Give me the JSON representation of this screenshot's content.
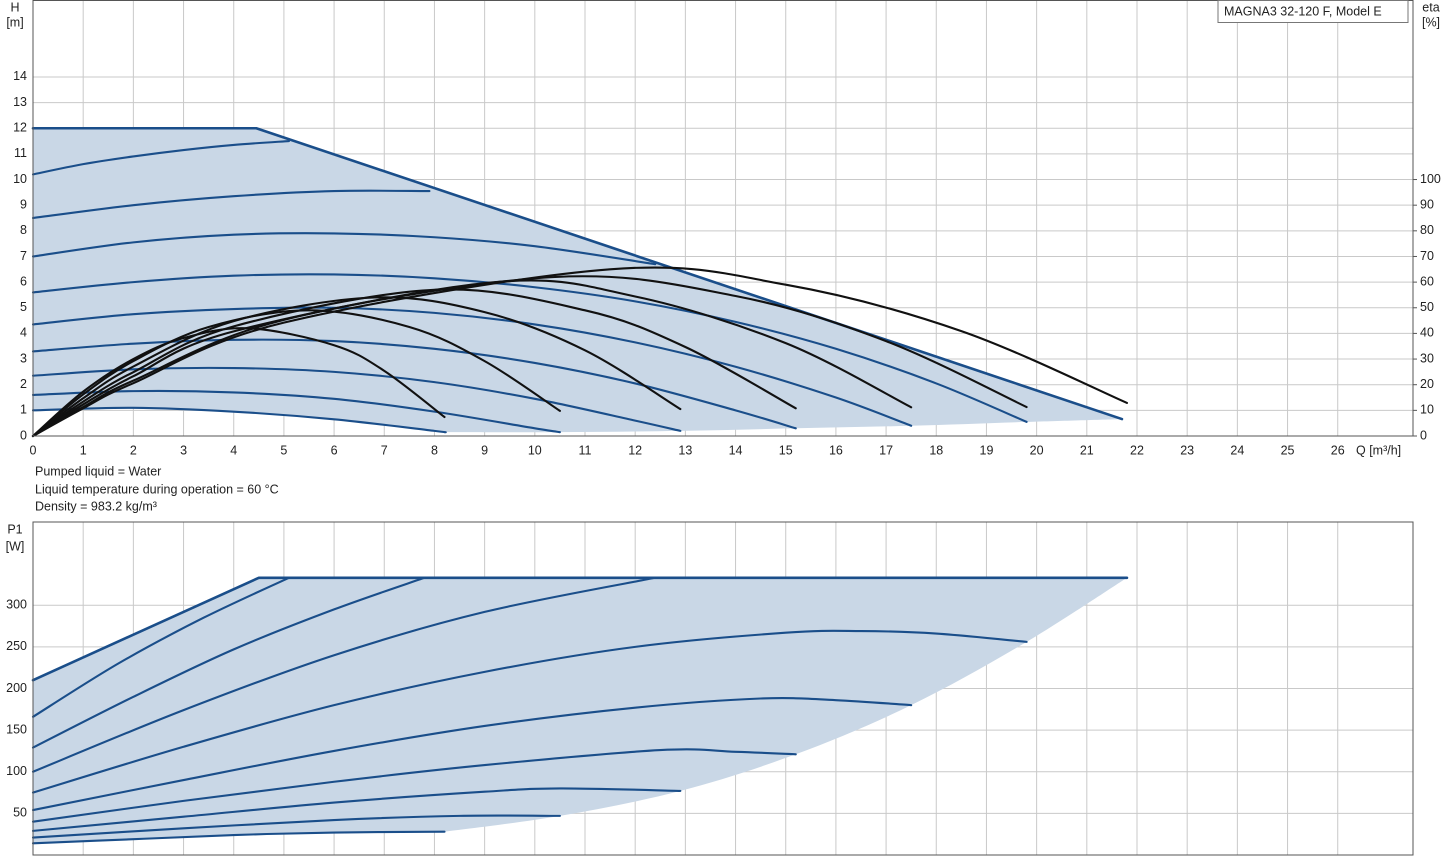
{
  "chart_data": [
    {
      "type": "line",
      "title": "MAGNA3 32-120 F, Model E",
      "ylabel": "H",
      "yunit": "[m]",
      "y2label": "eta",
      "y2unit": "[%]",
      "xlabel": "Q [m³/h]",
      "notes": [
        "Pumped liquid = Water",
        "Liquid temperature during operation = 60 °C",
        "Density = 983.2 kg/m³"
      ],
      "xlim": [
        0,
        27.5
      ],
      "xticks": [
        0,
        1,
        2,
        3,
        4,
        5,
        6,
        7,
        8,
        9,
        10,
        11,
        12,
        13,
        14,
        15,
        16,
        17,
        18,
        19,
        20,
        21,
        22,
        23,
        24,
        25,
        26
      ],
      "ylim": [
        0,
        17
      ],
      "yticks": [
        0,
        1,
        2,
        3,
        4,
        5,
        6,
        7,
        8,
        9,
        10,
        11,
        12,
        13,
        14
      ],
      "y2lim": [
        0,
        170
      ],
      "y2ticks": [
        0,
        10,
        20,
        30,
        40,
        50,
        60,
        70,
        80,
        90,
        100
      ],
      "grid": true,
      "area_color": "#c9d7e6",
      "series": [
        {
          "color": "#1a4e8a",
          "interpolation": "linear",
          "x": [
            0,
            4.45,
            21.7
          ],
          "values": [
            12,
            12,
            0.66
          ]
        },
        {
          "color": "#1a4e8a",
          "x": [
            0,
            1,
            2,
            3,
            4,
            5.1
          ],
          "values": [
            10.2,
            10.6,
            10.9,
            11.15,
            11.35,
            11.5
          ]
        },
        {
          "color": "#1a4e8a",
          "x": [
            0,
            2,
            4,
            6,
            7.9
          ],
          "values": [
            8.5,
            9.0,
            9.35,
            9.55,
            9.55
          ]
        },
        {
          "color": "#1a4e8a",
          "x": [
            0,
            2,
            4,
            6,
            8,
            10,
            12.4
          ],
          "values": [
            7.0,
            7.55,
            7.85,
            7.9,
            7.75,
            7.4,
            6.7
          ]
        },
        {
          "color": "#1a4e8a",
          "x": [
            0,
            2,
            4,
            6,
            8,
            10,
            12,
            14,
            16,
            18,
            19.8
          ],
          "values": [
            5.6,
            6.0,
            6.25,
            6.3,
            6.15,
            5.8,
            5.25,
            4.45,
            3.4,
            2.05,
            0.55
          ]
        },
        {
          "color": "#1a4e8a",
          "x": [
            0,
            2,
            4,
            6,
            8,
            10,
            12,
            14,
            16,
            17.5
          ],
          "values": [
            4.35,
            4.75,
            4.95,
            5.0,
            4.8,
            4.35,
            3.65,
            2.7,
            1.5,
            0.4
          ]
        },
        {
          "color": "#1a4e8a",
          "x": [
            0,
            2,
            4,
            6,
            8,
            10,
            12,
            14,
            15.2
          ],
          "values": [
            3.3,
            3.6,
            3.75,
            3.7,
            3.4,
            2.85,
            2.05,
            1.0,
            0.3
          ]
        },
        {
          "color": "#1a4e8a",
          "x": [
            0,
            2,
            4,
            6,
            8,
            10,
            12,
            12.9
          ],
          "values": [
            2.35,
            2.6,
            2.65,
            2.5,
            2.1,
            1.45,
            0.6,
            0.2
          ]
        },
        {
          "color": "#1a4e8a",
          "x": [
            0,
            2,
            4,
            6,
            8,
            10,
            10.5
          ],
          "values": [
            1.6,
            1.75,
            1.7,
            1.45,
            0.95,
            0.3,
            0.15
          ]
        },
        {
          "color": "#1a4e8a",
          "x": [
            0,
            2,
            4,
            6,
            8,
            8.2
          ],
          "values": [
            1.0,
            1.1,
            0.95,
            0.65,
            0.2,
            0.15
          ]
        },
        {
          "color": "#111111",
          "axis": "y2",
          "x": [
            0,
            1,
            2,
            3,
            4.3,
            6,
            7,
            8.2
          ],
          "values": [
            0,
            17.3,
            30.0,
            38.2,
            42,
            35.4,
            25.4,
            7.4
          ]
        },
        {
          "color": "#111111",
          "axis": "y2",
          "x": [
            0,
            1,
            2,
            3.5,
            5.5,
            7.5,
            9,
            10.5
          ],
          "values": [
            0,
            16.2,
            29.2,
            42.5,
            49,
            42.5,
            29.2,
            9.8
          ]
        },
        {
          "color": "#111111",
          "axis": "y2",
          "x": [
            0,
            1,
            2,
            4,
            6.8,
            9,
            11,
            12.9
          ],
          "values": [
            0,
            14.7,
            27.1,
            44.8,
            54,
            48.3,
            33.4,
            10.5
          ]
        },
        {
          "color": "#111111",
          "axis": "y2",
          "x": [
            0,
            1,
            2,
            4,
            8,
            11,
            13,
            15.2
          ],
          "values": [
            0,
            13.4,
            24.9,
            42.75,
            57,
            49.0,
            34.7,
            10.8
          ]
        },
        {
          "color": "#111111",
          "axis": "y2",
          "x": [
            0,
            1,
            2,
            4,
            9.2,
            12,
            15,
            17.5
          ],
          "values": [
            0,
            12.3,
            23.3,
            40.8,
            60,
            54.4,
            36.2,
            11.2
          ]
        },
        {
          "color": "#111111",
          "axis": "y2",
          "x": [
            0,
            1,
            2,
            5,
            10.4,
            14,
            17,
            19.8
          ],
          "values": [
            0,
            11.3,
            21.6,
            45.3,
            62,
            54.6,
            37.0,
            11.3
          ]
        },
        {
          "color": "#111111",
          "axis": "y2",
          "x": [
            0,
            1,
            2,
            5,
            11.5,
            15,
            18.5,
            21.8
          ],
          "values": [
            0,
            10.8,
            20.6,
            44.2,
            65,
            59.0,
            40.9,
            12.9
          ]
        }
      ]
    },
    {
      "type": "line",
      "ylabel": "P1",
      "yunit": "[W]",
      "xlim": [
        0,
        27.5
      ],
      "ylim": [
        0,
        400
      ],
      "yticks": [
        50,
        100,
        150,
        200,
        250,
        300
      ],
      "grid": true,
      "area_color": "#c9d7e6",
      "series": [
        {
          "color": "#1a4e8a",
          "interpolation": "linear",
          "x": [
            0,
            4.5,
            21.8
          ],
          "values": [
            210,
            333,
            333
          ]
        },
        {
          "color": "#1a4e8a",
          "x": [
            0,
            1.7,
            3.4,
            5.1
          ],
          "values": [
            166,
            230,
            285,
            333
          ]
        },
        {
          "color": "#1a4e8a",
          "x": [
            0,
            2,
            4,
            6,
            7.8
          ],
          "values": [
            129,
            190,
            247,
            295,
            333
          ]
        },
        {
          "color": "#1a4e8a",
          "x": [
            0,
            3,
            6,
            9,
            12.4
          ],
          "values": [
            100,
            174,
            240,
            292,
            333
          ]
        },
        {
          "color": "#1a4e8a",
          "x": [
            0,
            3,
            6,
            9,
            12,
            15,
            16.5,
            18,
            19.8
          ],
          "values": [
            75,
            130,
            180,
            220,
            250,
            267,
            269,
            266,
            256
          ]
        },
        {
          "color": "#1a4e8a",
          "x": [
            0,
            3,
            6,
            9,
            12,
            14.5,
            16,
            17.5
          ],
          "values": [
            54,
            90,
            125,
            155,
            177,
            188,
            186,
            180
          ]
        },
        {
          "color": "#1a4e8a",
          "x": [
            0,
            3,
            6,
            9,
            12.5,
            14,
            15.2
          ],
          "values": [
            40,
            65,
            88,
            108,
            126,
            124,
            121
          ]
        },
        {
          "color": "#1a4e8a",
          "x": [
            0,
            3,
            6,
            9,
            10.5,
            12.9
          ],
          "values": [
            29,
            46,
            63,
            76,
            80,
            77
          ]
        },
        {
          "color": "#1a4e8a",
          "x": [
            0,
            3,
            6,
            8.5,
            10.5
          ],
          "values": [
            21,
            32,
            42,
            47,
            47
          ]
        },
        {
          "color": "#1a4e8a",
          "x": [
            0,
            2,
            4,
            6,
            8.2
          ],
          "values": [
            14,
            19,
            24,
            27,
            28
          ]
        }
      ]
    }
  ]
}
